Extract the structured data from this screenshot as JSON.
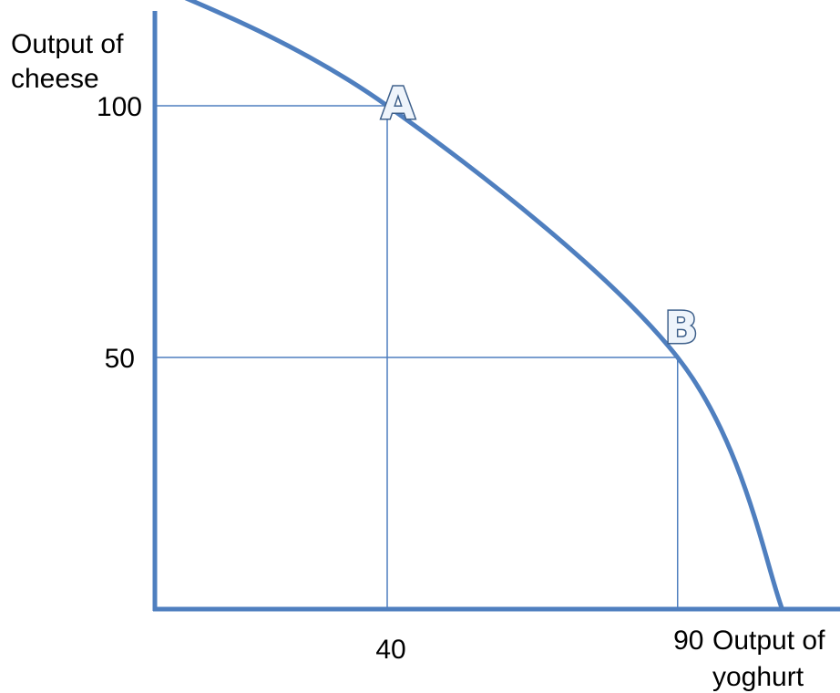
{
  "chart_data": {
    "type": "line",
    "title": "",
    "ylabel_lines": [
      "Output of",
      "cheese"
    ],
    "xlabel_lines": [
      "Output of",
      "yoghurt"
    ],
    "x_ticks": [
      40,
      90
    ],
    "y_ticks": [
      100,
      50
    ],
    "x_max_intercept": 108,
    "y_max_intercept": 124,
    "grid": false,
    "points": [
      {
        "label": "A",
        "x": 40,
        "y": 100
      },
      {
        "label": "B",
        "x": 90,
        "y": 50
      }
    ],
    "curve": {
      "name": "",
      "shape": "concave production possibility frontier",
      "x": [
        0,
        40,
        90,
        108
      ],
      "y": [
        124,
        100,
        50,
        0
      ]
    }
  },
  "colors": {
    "axis": "#4f7fbf",
    "curve": "#4f7fbf",
    "guide": "#4f7fbf",
    "point_label_fill": "#eef4fb",
    "point_label_stroke": "#3d5f8a",
    "text": "#000000"
  }
}
